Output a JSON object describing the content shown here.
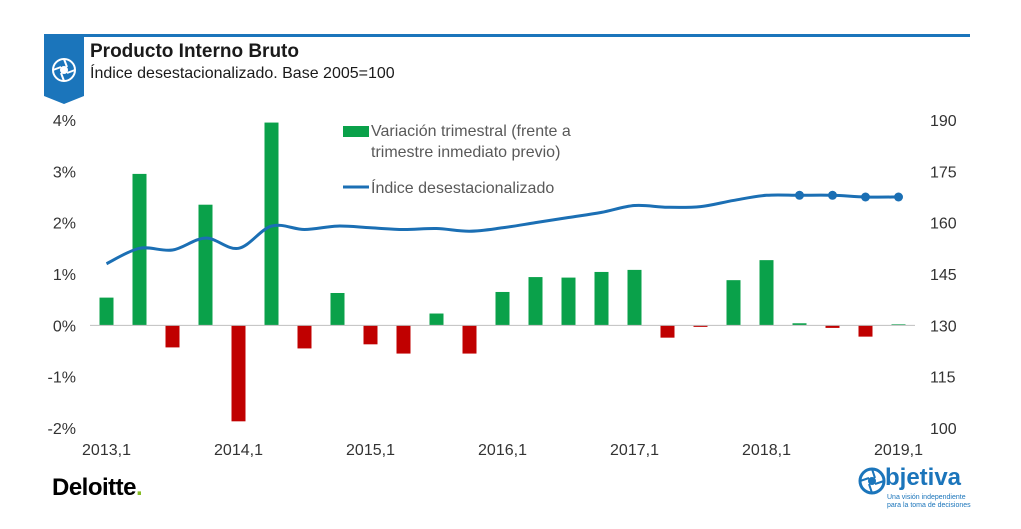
{
  "header": {
    "title": "Producto Interno Bruto",
    "subtitle": "Índice desestacionalizado. Base 2005=100"
  },
  "colors": {
    "accent": "#1b75bb",
    "positive_bar": "#0aa14a",
    "negative_bar": "#c00000",
    "line": "#1b6fb4"
  },
  "footer": {
    "deloitte_logo": "Deloitte",
    "deloitte_dot": ".",
    "objetiva_logo": "bjetiva",
    "objetiva_tagline": "Una visión independiente para la toma de decisiones"
  },
  "icons": {
    "header_badge": "aperture-icon",
    "objetiva_mark": "aperture-icon"
  },
  "chart_data": {
    "type": "bar",
    "title": "Producto Interno Bruto",
    "subtitle": "Índice desestacionalizado. Base 2005=100",
    "x_tick_labels": [
      "2013,1",
      "2014,1",
      "2015,1",
      "2016,1",
      "2017,1",
      "2018,1",
      "2019,1"
    ],
    "x": [
      "2013,1",
      "2013,2",
      "2013,3",
      "2013,4",
      "2014,1",
      "2014,2",
      "2014,3",
      "2014,4",
      "2015,1",
      "2015,2",
      "2015,3",
      "2015,4",
      "2016,1",
      "2016,2",
      "2016,3",
      "2016,4",
      "2017,1",
      "2017,2",
      "2017,3",
      "2017,4",
      "2018,1",
      "2018,2",
      "2018,3",
      "2018,4",
      "2019,1"
    ],
    "y_left_ticks": [
      "4%",
      "3%",
      "2%",
      "1%",
      "0%",
      "-1%",
      "-2%"
    ],
    "y_left_range": [
      -2,
      4
    ],
    "y_right_ticks": [
      "190",
      "175",
      "160",
      "145",
      "130",
      "115",
      "100"
    ],
    "y_right_range": [
      100,
      190
    ],
    "legend_position": "top-center",
    "grid": false,
    "series": [
      {
        "name": "Variación trimestral (frente a trimestre inmediato previo)",
        "legend_lines": [
          "Variación trimestral (frente a",
          "trimestre inmediato previo)"
        ],
        "kind": "bar",
        "axis": "left",
        "unit": "%",
        "values": [
          0.54,
          2.95,
          -0.43,
          2.35,
          -1.87,
          3.95,
          -0.45,
          0.63,
          -0.37,
          -0.55,
          0.23,
          -0.55,
          0.65,
          0.94,
          0.93,
          1.04,
          1.08,
          -0.24,
          -0.03,
          0.88,
          1.27,
          0.04,
          -0.05,
          -0.22,
          0.02
        ]
      },
      {
        "name": "Índice desestacionalizado",
        "kind": "line",
        "axis": "right",
        "values": [
          148,
          152.5,
          152,
          155.5,
          152.5,
          159,
          158,
          159,
          158.5,
          158,
          158.3,
          157.5,
          158.5,
          160,
          161.5,
          163,
          165,
          164.5,
          164.7,
          166.5,
          168,
          168,
          168,
          167.5,
          167.5
        ],
        "forecast_marker_from": "2018,2"
      }
    ]
  }
}
